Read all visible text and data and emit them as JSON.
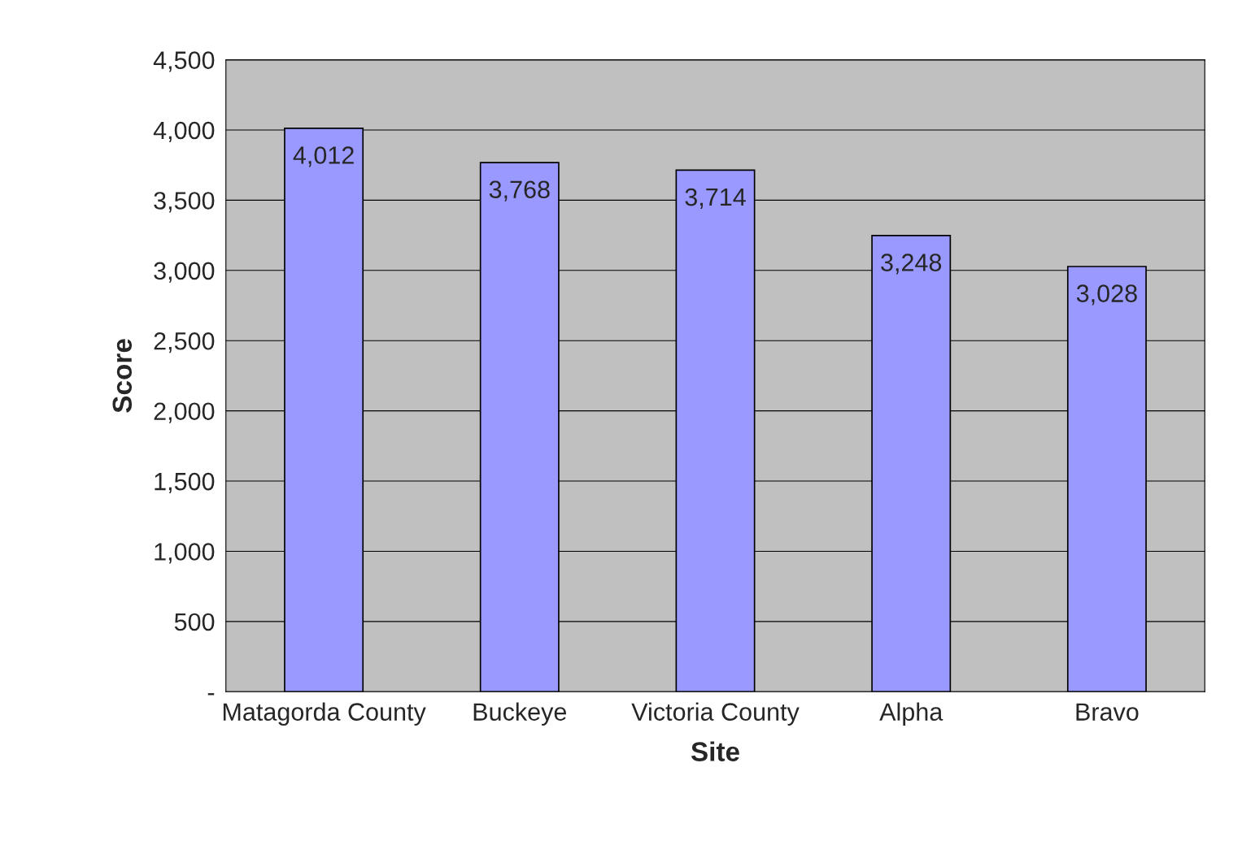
{
  "chart_data": {
    "type": "bar",
    "xlabel": "Site",
    "ylabel": "Score",
    "categories": [
      "Matagorda County",
      "Buckeye",
      "Victoria County",
      "Alpha",
      "Bravo"
    ],
    "values": [
      4012,
      3768,
      3714,
      3248,
      3028
    ],
    "value_labels": [
      "4,012",
      "3,768",
      "3,714",
      "3,248",
      "3,028"
    ],
    "color": "#9999ff",
    "ylim": [
      0,
      4500
    ],
    "yticks": [
      {
        "value": 0,
        "label": "-"
      },
      500,
      {
        "value": 1000,
        "label": "1,000"
      },
      {
        "value": 1500,
        "label": "1,500"
      },
      {
        "value": 2000,
        "label": "2,000"
      },
      {
        "value": 2500,
        "label": "2,500"
      },
      {
        "value": 3000,
        "label": "3,000"
      },
      {
        "value": 3500,
        "label": "3,500"
      },
      {
        "value": 4000,
        "label": "4,000"
      },
      {
        "value": 4500,
        "label": "4,500"
      }
    ],
    "grid": "y"
  }
}
